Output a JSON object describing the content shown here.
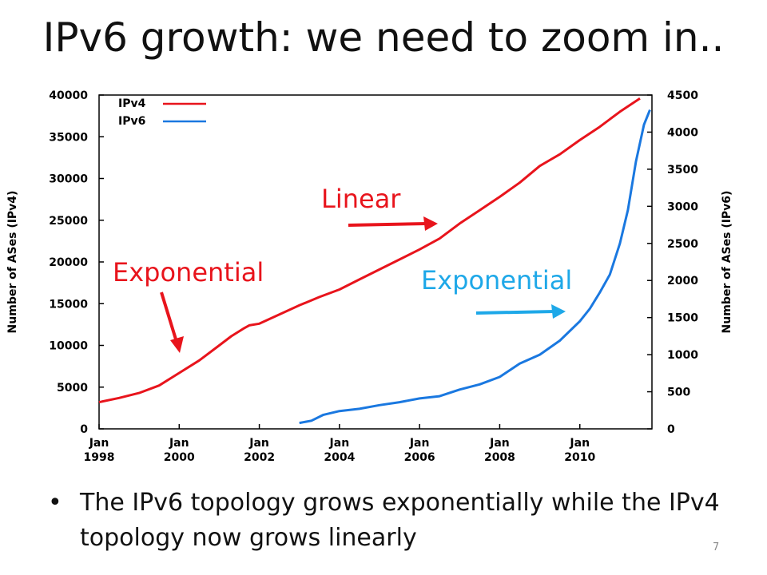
{
  "slide": {
    "title": "IPv6 growth: we need to zoom in..",
    "bullet_symbol": "•",
    "bullet": "The IPv6 topology grows exponentially while the IPv4 topology now grows linearly",
    "slide_number": "7"
  },
  "colors": {
    "ipv4": "#e8141c",
    "ipv6": "#1a78e0",
    "annot_red": "#e8141c",
    "annot_blue": "#1ea8e8"
  },
  "annotations": {
    "linear": "Linear",
    "exp_ipv4": "Exponential",
    "exp_ipv6": "Exponential"
  },
  "chart_data": {
    "type": "line",
    "xlabel": "",
    "ylabel_left": "Number of ASes (IPv4)",
    "ylabel_right": "Number of ASes (IPv6)",
    "xlim": [
      1998,
      2011.8
    ],
    "ylim_left": [
      0,
      40000
    ],
    "ylim_right": [
      0,
      4500
    ],
    "x_ticks": [
      {
        "value": 1998,
        "line1": "Jan",
        "line2": "1998"
      },
      {
        "value": 2000,
        "line1": "Jan",
        "line2": "2000"
      },
      {
        "value": 2002,
        "line1": "Jan",
        "line2": "2002"
      },
      {
        "value": 2004,
        "line1": "Jan",
        "line2": "2004"
      },
      {
        "value": 2006,
        "line1": "Jan",
        "line2": "2006"
      },
      {
        "value": 2008,
        "line1": "Jan",
        "line2": "2008"
      },
      {
        "value": 2010,
        "line1": "Jan",
        "line2": "2010"
      }
    ],
    "y_ticks_left": [
      "0",
      "5000",
      "10000",
      "15000",
      "20000",
      "25000",
      "30000",
      "35000",
      "40000"
    ],
    "y_ticks_right": [
      "0",
      "500",
      "1000",
      "1500",
      "2000",
      "2500",
      "3000",
      "3500",
      "4000",
      "4500"
    ],
    "legend_position": "top-left",
    "series": [
      {
        "name": "IPv4",
        "axis": "left",
        "points": [
          [
            1998.0,
            3200
          ],
          [
            1998.5,
            3700
          ],
          [
            1999.0,
            4300
          ],
          [
            1999.5,
            5200
          ],
          [
            2000.0,
            6700
          ],
          [
            2000.5,
            8200
          ],
          [
            2001.0,
            10000
          ],
          [
            2001.3,
            11100
          ],
          [
            2001.6,
            12000
          ],
          [
            2001.75,
            12400
          ],
          [
            2002.0,
            12600
          ],
          [
            2002.5,
            13700
          ],
          [
            2003.0,
            14800
          ],
          [
            2003.5,
            15800
          ],
          [
            2004.0,
            16700
          ],
          [
            2004.5,
            17900
          ],
          [
            2005.0,
            19100
          ],
          [
            2005.5,
            20300
          ],
          [
            2006.0,
            21500
          ],
          [
            2006.5,
            22800
          ],
          [
            2007.0,
            24600
          ],
          [
            2007.5,
            26200
          ],
          [
            2008.0,
            27800
          ],
          [
            2008.5,
            29500
          ],
          [
            2009.0,
            31500
          ],
          [
            2009.25,
            32200
          ],
          [
            2009.5,
            32900
          ],
          [
            2010.0,
            34600
          ],
          [
            2010.5,
            36200
          ],
          [
            2011.0,
            38000
          ],
          [
            2011.5,
            39600
          ]
        ]
      },
      {
        "name": "IPv6",
        "axis": "right",
        "points": [
          [
            2003.0,
            80
          ],
          [
            2003.3,
            110
          ],
          [
            2003.6,
            190
          ],
          [
            2004.0,
            240
          ],
          [
            2004.5,
            270
          ],
          [
            2005.0,
            320
          ],
          [
            2005.5,
            360
          ],
          [
            2006.0,
            410
          ],
          [
            2006.5,
            440
          ],
          [
            2007.0,
            530
          ],
          [
            2007.5,
            600
          ],
          [
            2008.0,
            700
          ],
          [
            2008.25,
            790
          ],
          [
            2008.5,
            880
          ],
          [
            2009.0,
            1000
          ],
          [
            2009.5,
            1190
          ],
          [
            2010.0,
            1450
          ],
          [
            2010.25,
            1620
          ],
          [
            2010.5,
            1840
          ],
          [
            2010.75,
            2080
          ],
          [
            2011.0,
            2500
          ],
          [
            2011.2,
            2950
          ],
          [
            2011.4,
            3600
          ],
          [
            2011.6,
            4100
          ],
          [
            2011.75,
            4300
          ]
        ]
      }
    ]
  }
}
